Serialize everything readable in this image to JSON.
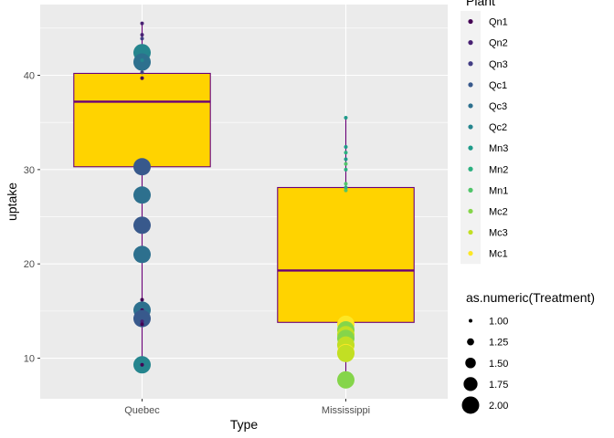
{
  "chart_data": {
    "type": "boxplot",
    "xlabel": "Type",
    "ylabel": "uptake",
    "categories": [
      "Quebec",
      "Mississippi"
    ],
    "ylim": [
      5.7,
      47.5
    ],
    "yticks": [
      10,
      20,
      30,
      40
    ],
    "grid": true,
    "box_fill": "#FFD300",
    "box_line": "#6A0078",
    "boxes": [
      {
        "category": "Quebec",
        "lower_whisker": 9.3,
        "q1": 30.3,
        "median": 37.2,
        "q3": 40.2,
        "upper_whisker": 45.5
      },
      {
        "category": "Mississippi",
        "lower_whisker": 7.7,
        "q1": 13.8,
        "median": 19.3,
        "q3": 28.1,
        "upper_whisker": 35.5
      }
    ],
    "color_legend": {
      "title": "Plant",
      "items": [
        {
          "label": "Qn1",
          "color": "#440154"
        },
        {
          "label": "Qn2",
          "color": "#482173"
        },
        {
          "label": "Qn3",
          "color": "#433E85"
        },
        {
          "label": "Qc1",
          "color": "#38598C"
        },
        {
          "label": "Qc3",
          "color": "#2D708E"
        },
        {
          "label": "Qc2",
          "color": "#25858E"
        },
        {
          "label": "Mn3",
          "color": "#1E9B8A"
        },
        {
          "label": "Mn2",
          "color": "#2BB07F"
        },
        {
          "label": "Mn1",
          "color": "#51C56A"
        },
        {
          "label": "Mc2",
          "color": "#85D54A"
        },
        {
          "label": "Mc3",
          "color": "#C2DF23"
        },
        {
          "label": "Mc1",
          "color": "#FDE725"
        }
      ]
    },
    "size_legend": {
      "title": "as.numeric(Treatment)",
      "items": [
        {
          "label": "1.00",
          "value": 1.0
        },
        {
          "label": "1.25",
          "value": 1.25
        },
        {
          "label": "1.50",
          "value": 1.5
        },
        {
          "label": "1.75",
          "value": 1.75
        },
        {
          "label": "2.00",
          "value": 2.0
        }
      ]
    },
    "points": [
      {
        "category": "Quebec",
        "y": 45.5,
        "plant": "Qn2",
        "size": 1
      },
      {
        "category": "Quebec",
        "y": 44.3,
        "plant": "Qn2",
        "size": 1
      },
      {
        "category": "Quebec",
        "y": 43.9,
        "plant": "Qn3",
        "size": 1
      },
      {
        "category": "Quebec",
        "y": 42.9,
        "plant": "Qn3",
        "size": 1
      },
      {
        "category": "Quebec",
        "y": 42.1,
        "plant": "Qn1",
        "size": 1
      },
      {
        "category": "Quebec",
        "y": 42.4,
        "plant": "Qc2",
        "size": 2
      },
      {
        "category": "Quebec",
        "y": 41.4,
        "plant": "Qc3",
        "size": 2
      },
      {
        "category": "Quebec",
        "y": 41.6,
        "plant": "Qc2",
        "size": 1
      },
      {
        "category": "Quebec",
        "y": 39.7,
        "plant": "Qn1",
        "size": 1
      },
      {
        "category": "Quebec",
        "y": 40.3,
        "plant": "Qn3",
        "size": 1
      },
      {
        "category": "Quebec",
        "y": 30.4,
        "plant": "Qn2",
        "size": 1
      },
      {
        "category": "Quebec",
        "y": 30.3,
        "plant": "Qc1",
        "size": 2
      },
      {
        "category": "Quebec",
        "y": 27.3,
        "plant": "Qc3",
        "size": 2
      },
      {
        "category": "Quebec",
        "y": 24.1,
        "plant": "Qc1",
        "size": 2
      },
      {
        "category": "Quebec",
        "y": 21.0,
        "plant": "Qc3",
        "size": 2
      },
      {
        "category": "Quebec",
        "y": 16.2,
        "plant": "Qn1",
        "size": 1
      },
      {
        "category": "Quebec",
        "y": 15.1,
        "plant": "Qc3",
        "size": 2
      },
      {
        "category": "Quebec",
        "y": 15.1,
        "plant": "Qn1",
        "size": 1
      },
      {
        "category": "Quebec",
        "y": 14.2,
        "plant": "Qc1",
        "size": 2
      },
      {
        "category": "Quebec",
        "y": 13.9,
        "plant": "Qn2",
        "size": 1
      },
      {
        "category": "Quebec",
        "y": 13.6,
        "plant": "Qn1",
        "size": 1
      },
      {
        "category": "Quebec",
        "y": 9.3,
        "plant": "Qc2",
        "size": 2
      },
      {
        "category": "Quebec",
        "y": 9.3,
        "plant": "Qn1",
        "size": 1
      },
      {
        "category": "Mississippi",
        "y": 35.5,
        "plant": "Mn3",
        "size": 1
      },
      {
        "category": "Mississippi",
        "y": 32.4,
        "plant": "Mn3",
        "size": 1
      },
      {
        "category": "Mississippi",
        "y": 31.8,
        "plant": "Mn2",
        "size": 1
      },
      {
        "category": "Mississippi",
        "y": 31.1,
        "plant": "Mn3",
        "size": 1
      },
      {
        "category": "Mississippi",
        "y": 30.6,
        "plant": "Mn1",
        "size": 1
      },
      {
        "category": "Mississippi",
        "y": 30.0,
        "plant": "Mn2",
        "size": 1
      },
      {
        "category": "Mississippi",
        "y": 28.5,
        "plant": "Mn1",
        "size": 1
      },
      {
        "category": "Mississippi",
        "y": 28.1,
        "plant": "Mn2",
        "size": 1
      },
      {
        "category": "Mississippi",
        "y": 27.8,
        "plant": "Mn1",
        "size": 1
      },
      {
        "category": "Mississippi",
        "y": 13.6,
        "plant": "Mc1",
        "size": 2
      },
      {
        "category": "Mississippi",
        "y": 13.0,
        "plant": "Mc2",
        "size": 2
      },
      {
        "category": "Mississippi",
        "y": 12.5,
        "plant": "Mc3",
        "size": 2
      },
      {
        "category": "Mississippi",
        "y": 12.1,
        "plant": "Mc2",
        "size": 2
      },
      {
        "category": "Mississippi",
        "y": 11.4,
        "plant": "Mc3",
        "size": 2
      },
      {
        "category": "Mississippi",
        "y": 10.6,
        "plant": "Mc1",
        "size": 2
      },
      {
        "category": "Mississippi",
        "y": 10.5,
        "plant": "Mc3",
        "size": 2
      },
      {
        "category": "Mississippi",
        "y": 7.7,
        "plant": "Mc2",
        "size": 2
      }
    ]
  }
}
